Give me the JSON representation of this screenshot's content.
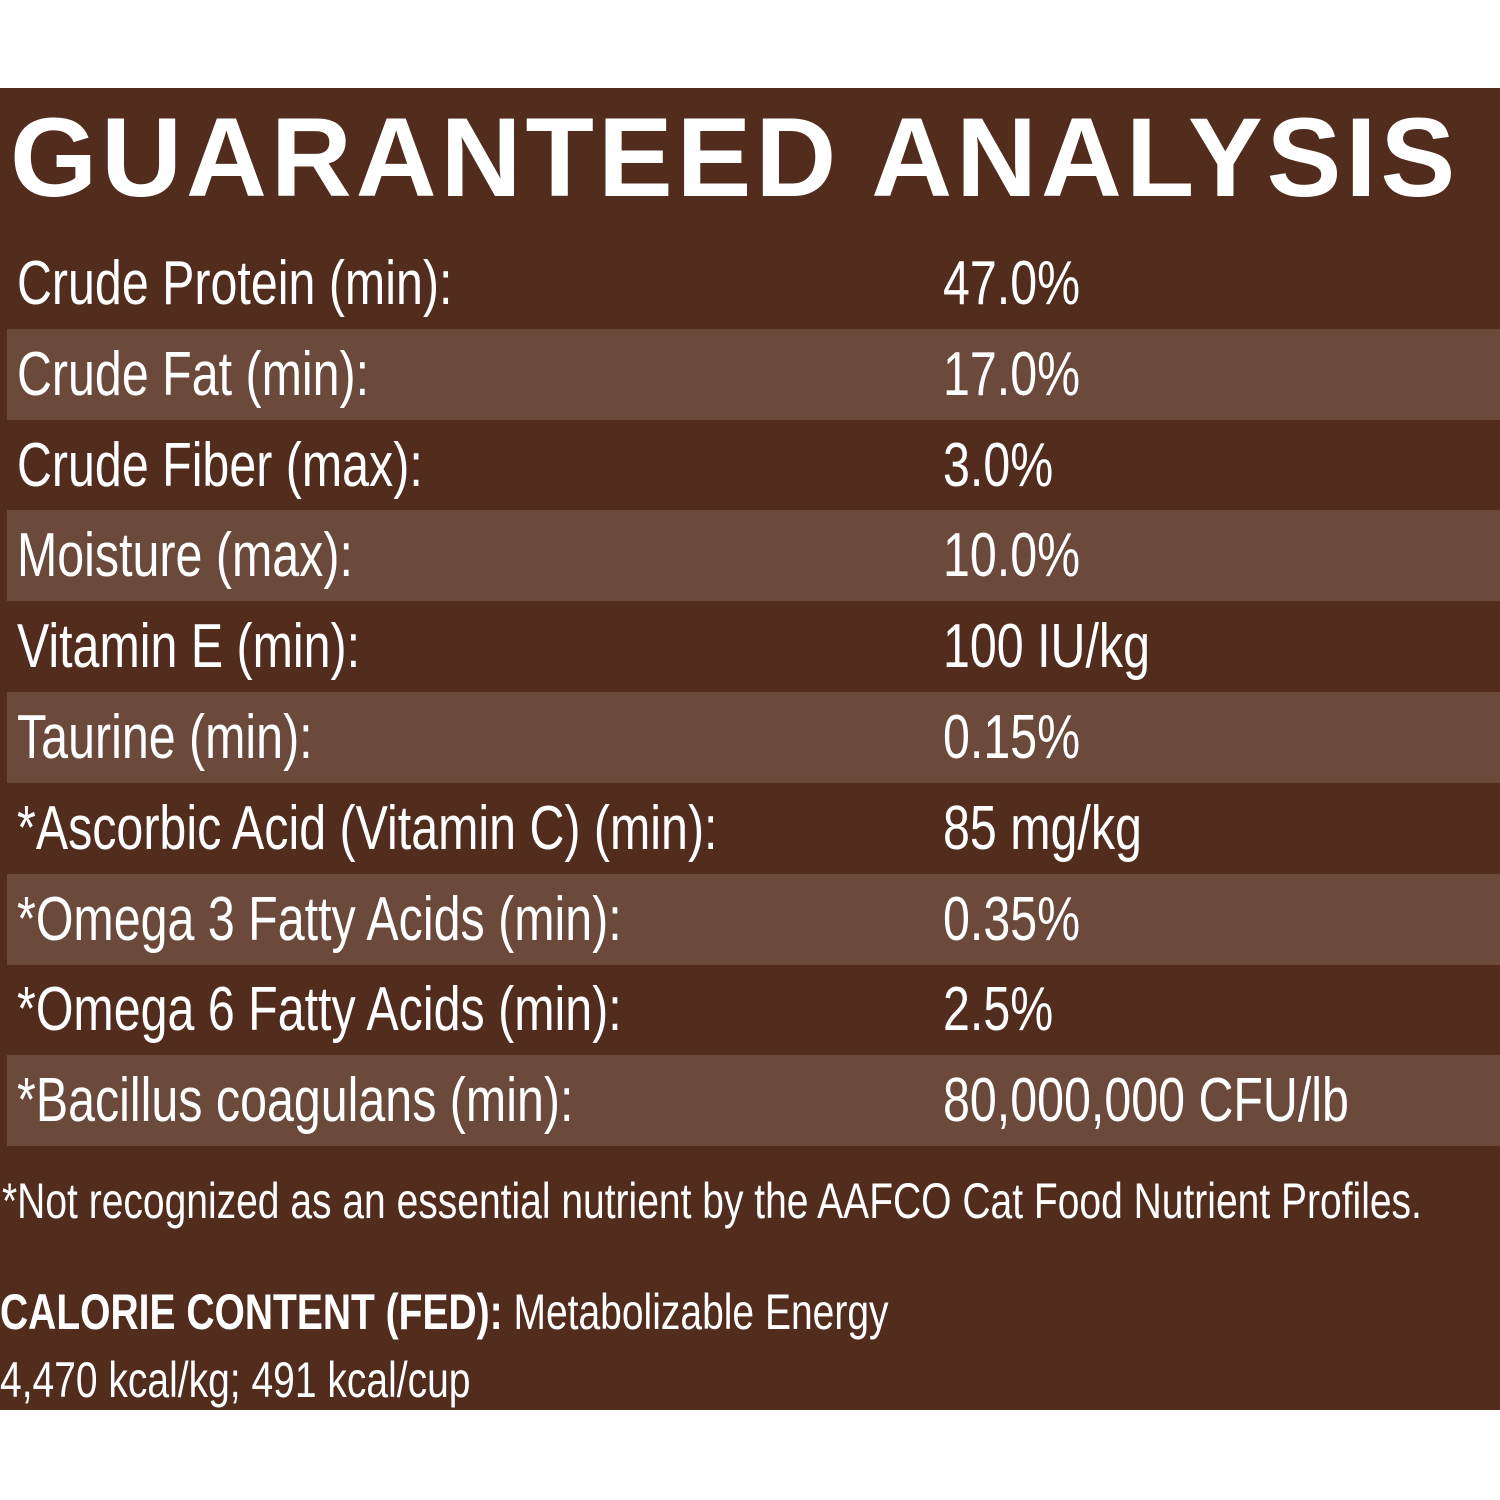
{
  "header": {
    "title": "GUARANTEED ANALYSIS"
  },
  "table": {
    "rows": [
      [
        "Crude Protein (min):",
        "47.0%"
      ],
      [
        "Crude Fat (min):",
        "17.0%"
      ],
      [
        "Crude Fiber (max):",
        "3.0%"
      ],
      [
        "Moisture (max):",
        "10.0%"
      ],
      [
        "Vitamin E (min):",
        "100 IU/kg"
      ],
      [
        "Taurine (min):",
        "0.15%"
      ],
      [
        "*Ascorbic Acid (Vitamin C) (min):",
        "85 mg/kg"
      ],
      [
        "*Omega 3 Fatty Acids (min):",
        "0.35%"
      ],
      [
        "*Omega 6 Fatty Acids (min):",
        "2.5%"
      ],
      [
        "*Bacillus coagulans (min):",
        "80,000,000 CFU/lb"
      ]
    ]
  },
  "footnote": "*Not recognized as an essential nutrient by the AAFCO Cat Food Nutrient Profiles.",
  "calorie": {
    "label": "CALORIE CONTENT (FED):",
    "text": "Metabolizable Energy",
    "line2": "4,470 kcal/kg; 491 kcal/cup"
  }
}
